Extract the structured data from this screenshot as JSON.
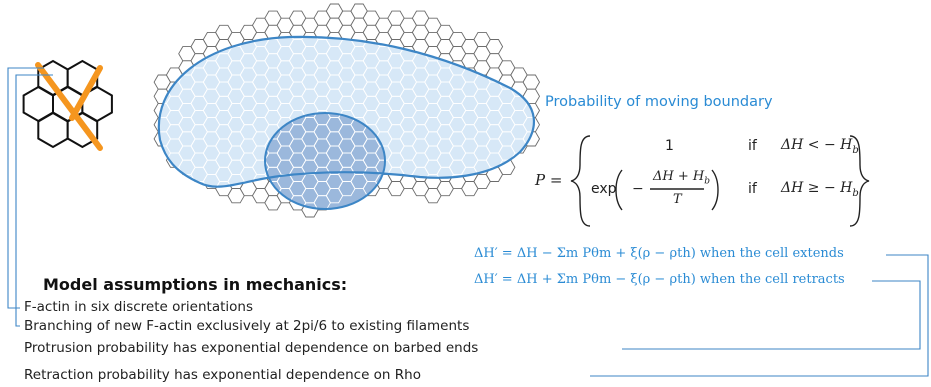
{
  "colors": {
    "accent_blue": "#2a8bd4",
    "hex_stroke": "#6b6b6b",
    "cell_fill": "#d7e8f7",
    "nucleus_fill": "#9bb8dc",
    "actin_orange": "#f5961f",
    "connector": "#3d86c6"
  },
  "icons": {
    "lattice": "hexagon-lattice-icon",
    "filament": "actin-filament-icon"
  },
  "boundary": {
    "heading": "Probability of moving boundary",
    "P_lhs": "P =",
    "case1_value": "1",
    "case1_if": "if",
    "case1_cond": "ΔH < − H",
    "case1_cond_sub": "b",
    "case2_exp": "exp",
    "case2_num": "ΔH + H",
    "case2_num_sub": "b",
    "case2_den": "T",
    "case2_if": "if",
    "case2_cond": "ΔH ≥ − H",
    "case2_cond_sub": "b"
  },
  "equations": {
    "extend": "ΔH′ = ΔH − Σm Pθm + ξ(ρ − ρth)  when the cell extends",
    "retract": "ΔH′ = ΔH + Σm Pθm − ξ(ρ − ρth)  when the cell retracts"
  },
  "assumptions": {
    "title": "Model assumptions in mechanics:",
    "items": [
      "F-actin in six discrete orientations",
      "Branching of new F-actin exclusively at 2pi/6 to existing filaments",
      "Protrusion probability has exponential dependence on barbed ends",
      "Retraction probability has exponential dependence on Rho"
    ]
  }
}
